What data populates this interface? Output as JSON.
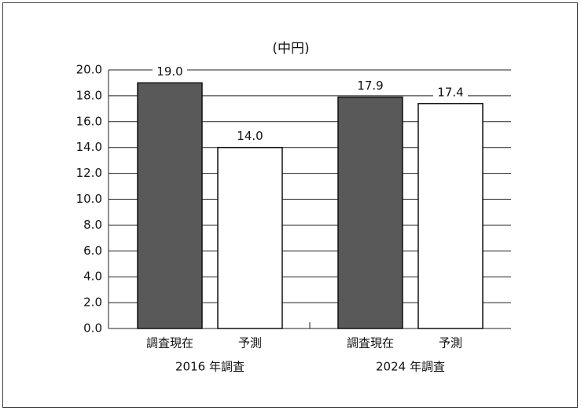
{
  "chart_data": {
    "type": "bar",
    "title": "(中円)",
    "categories": [
      "調査現在",
      "予測",
      "調査現在",
      "予測"
    ],
    "group_labels": [
      "2016 年調査",
      "2024 年調査"
    ],
    "values": [
      19.0,
      14.0,
      17.9,
      17.4
    ],
    "value_labels": [
      "19.0",
      "14.0",
      "17.9",
      "17.4"
    ],
    "colors": [
      "#595959",
      "#ffffff",
      "#595959",
      "#ffffff"
    ],
    "ylim": [
      0,
      20
    ],
    "yticks": [
      {
        "value": 0,
        "label": "0.0"
      },
      {
        "value": 2,
        "label": "2.0"
      },
      {
        "value": 4,
        "label": "4.0"
      },
      {
        "value": 6,
        "label": "6.0"
      },
      {
        "value": 8,
        "label": "8.0"
      },
      {
        "value": 10,
        "label": "10.0"
      },
      {
        "value": 12,
        "label": "12.0"
      },
      {
        "value": 14,
        "label": "14.0"
      },
      {
        "value": 16,
        "label": "16.0"
      },
      {
        "value": 18,
        "label": "18.0"
      },
      {
        "value": 20,
        "label": "20.0"
      }
    ],
    "grid": true
  }
}
